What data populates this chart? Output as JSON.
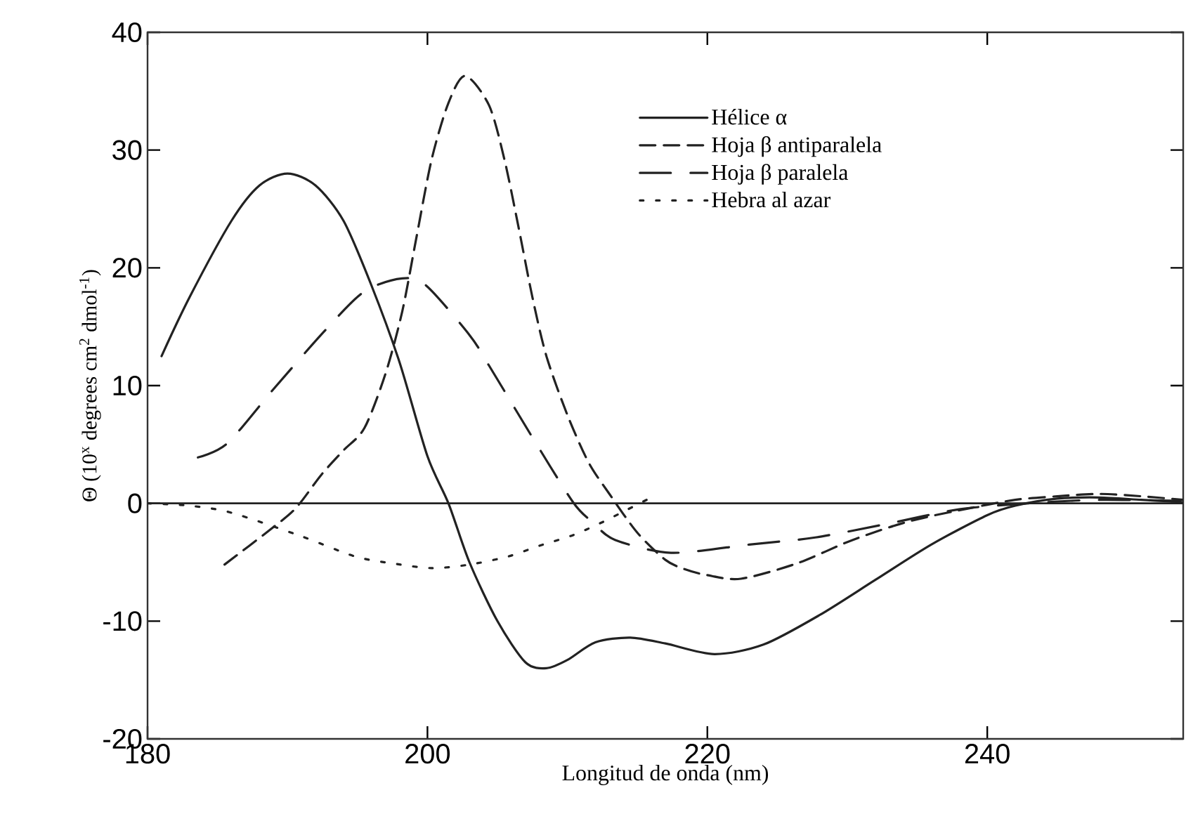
{
  "chart_data": {
    "type": "line",
    "xlabel": "Longitud de onda (nm)",
    "ylabel": "Θ (10$^{x}$ degrees  cm$^{2}$  dmol$^{-1}$)",
    "xlim": [
      180,
      254
    ],
    "ylim": [
      -20,
      40
    ],
    "xticks": [
      180,
      200,
      220,
      240
    ],
    "yticks": [
      -20,
      -10,
      0,
      10,
      20,
      30,
      40
    ],
    "legend": "top right",
    "marker": "none",
    "ref_lines": [
      {
        "axis": "y",
        "value": 0,
        "color": "#222222",
        "line_style": "solid"
      }
    ],
    "series": [
      {
        "name": "Hélice α",
        "color": "#222222",
        "line_style": "solid",
        "x": [
          181,
          183,
          186,
          188,
          190,
          192,
          194,
          196,
          198,
          200,
          201.5,
          203,
          205,
          207,
          208.5,
          210,
          212,
          214.5,
          217,
          220.5,
          224,
          228,
          232,
          236,
          240,
          242,
          245,
          248,
          251,
          254
        ],
        "values": [
          12.5,
          17.5,
          24,
          27,
          28,
          27,
          24,
          18.5,
          12,
          4,
          0,
          -5,
          -10,
          -13.5,
          -14,
          -13.3,
          -11.8,
          -11.4,
          -11.9,
          -12.8,
          -12,
          -9.5,
          -6.5,
          -3.5,
          -1,
          -0.2,
          0.4,
          0.5,
          0.3,
          0.1
        ]
      },
      {
        "name": "Hoja β antiparalela",
        "color": "#222222",
        "line_style": "dashed",
        "x": [
          185.5,
          188.8,
          190.6,
          192.4,
          194,
          195.5,
          197,
          198.2,
          199.2,
          200.3,
          201.5,
          202.7,
          204.4,
          205.5,
          206.5,
          207.5,
          208.5,
          210,
          211.5,
          213,
          215,
          217,
          218.4,
          220,
          222.4,
          226.4,
          230.4,
          234.5,
          238.8,
          242,
          245,
          248,
          251,
          254
        ],
        "values": [
          -5.2,
          -2.2,
          -0.4,
          2.4,
          4.5,
          6.4,
          11,
          16.3,
          22.5,
          29.2,
          34,
          36.3,
          33.8,
          29.2,
          23.5,
          17.5,
          12.5,
          7.5,
          3.5,
          0.8,
          -2.5,
          -4.8,
          -5.6,
          -6.1,
          -6.4,
          -5.1,
          -3.1,
          -1.5,
          -0.4,
          0.3,
          0.6,
          0.8,
          0.6,
          0.3
        ]
      },
      {
        "name": "Hoja β paralela",
        "color": "#222222",
        "line_style": "longdashed",
        "x": [
          183.6,
          185.7,
          189,
          192.7,
          195.5,
          198.2,
          199.9,
          203,
          204.4,
          207.5,
          210.4,
          211.8,
          213.4,
          217.4,
          223,
          227.7,
          233,
          238,
          243,
          248,
          254
        ],
        "values": [
          3.9,
          5.1,
          9.7,
          14.7,
          18,
          19.1,
          18.5,
          14.3,
          11.7,
          5.6,
          0.1,
          -1.6,
          -3.1,
          -4.2,
          -3.5,
          -2.9,
          -1.7,
          -0.5,
          0,
          0.3,
          0.2
        ]
      },
      {
        "name": "Hebra al azar",
        "color": "#222222",
        "line_style": "dotted",
        "x": [
          180,
          183,
          186,
          191,
          194.8,
          197.5,
          200.3,
          203,
          205.8,
          208,
          210.4,
          212.5,
          214,
          216
        ],
        "values": [
          0,
          -0.2,
          -0.8,
          -2.8,
          -4.5,
          -5.1,
          -5.5,
          -5.2,
          -4.5,
          -3.6,
          -2.7,
          -1.6,
          -0.7,
          0.5
        ]
      }
    ]
  }
}
